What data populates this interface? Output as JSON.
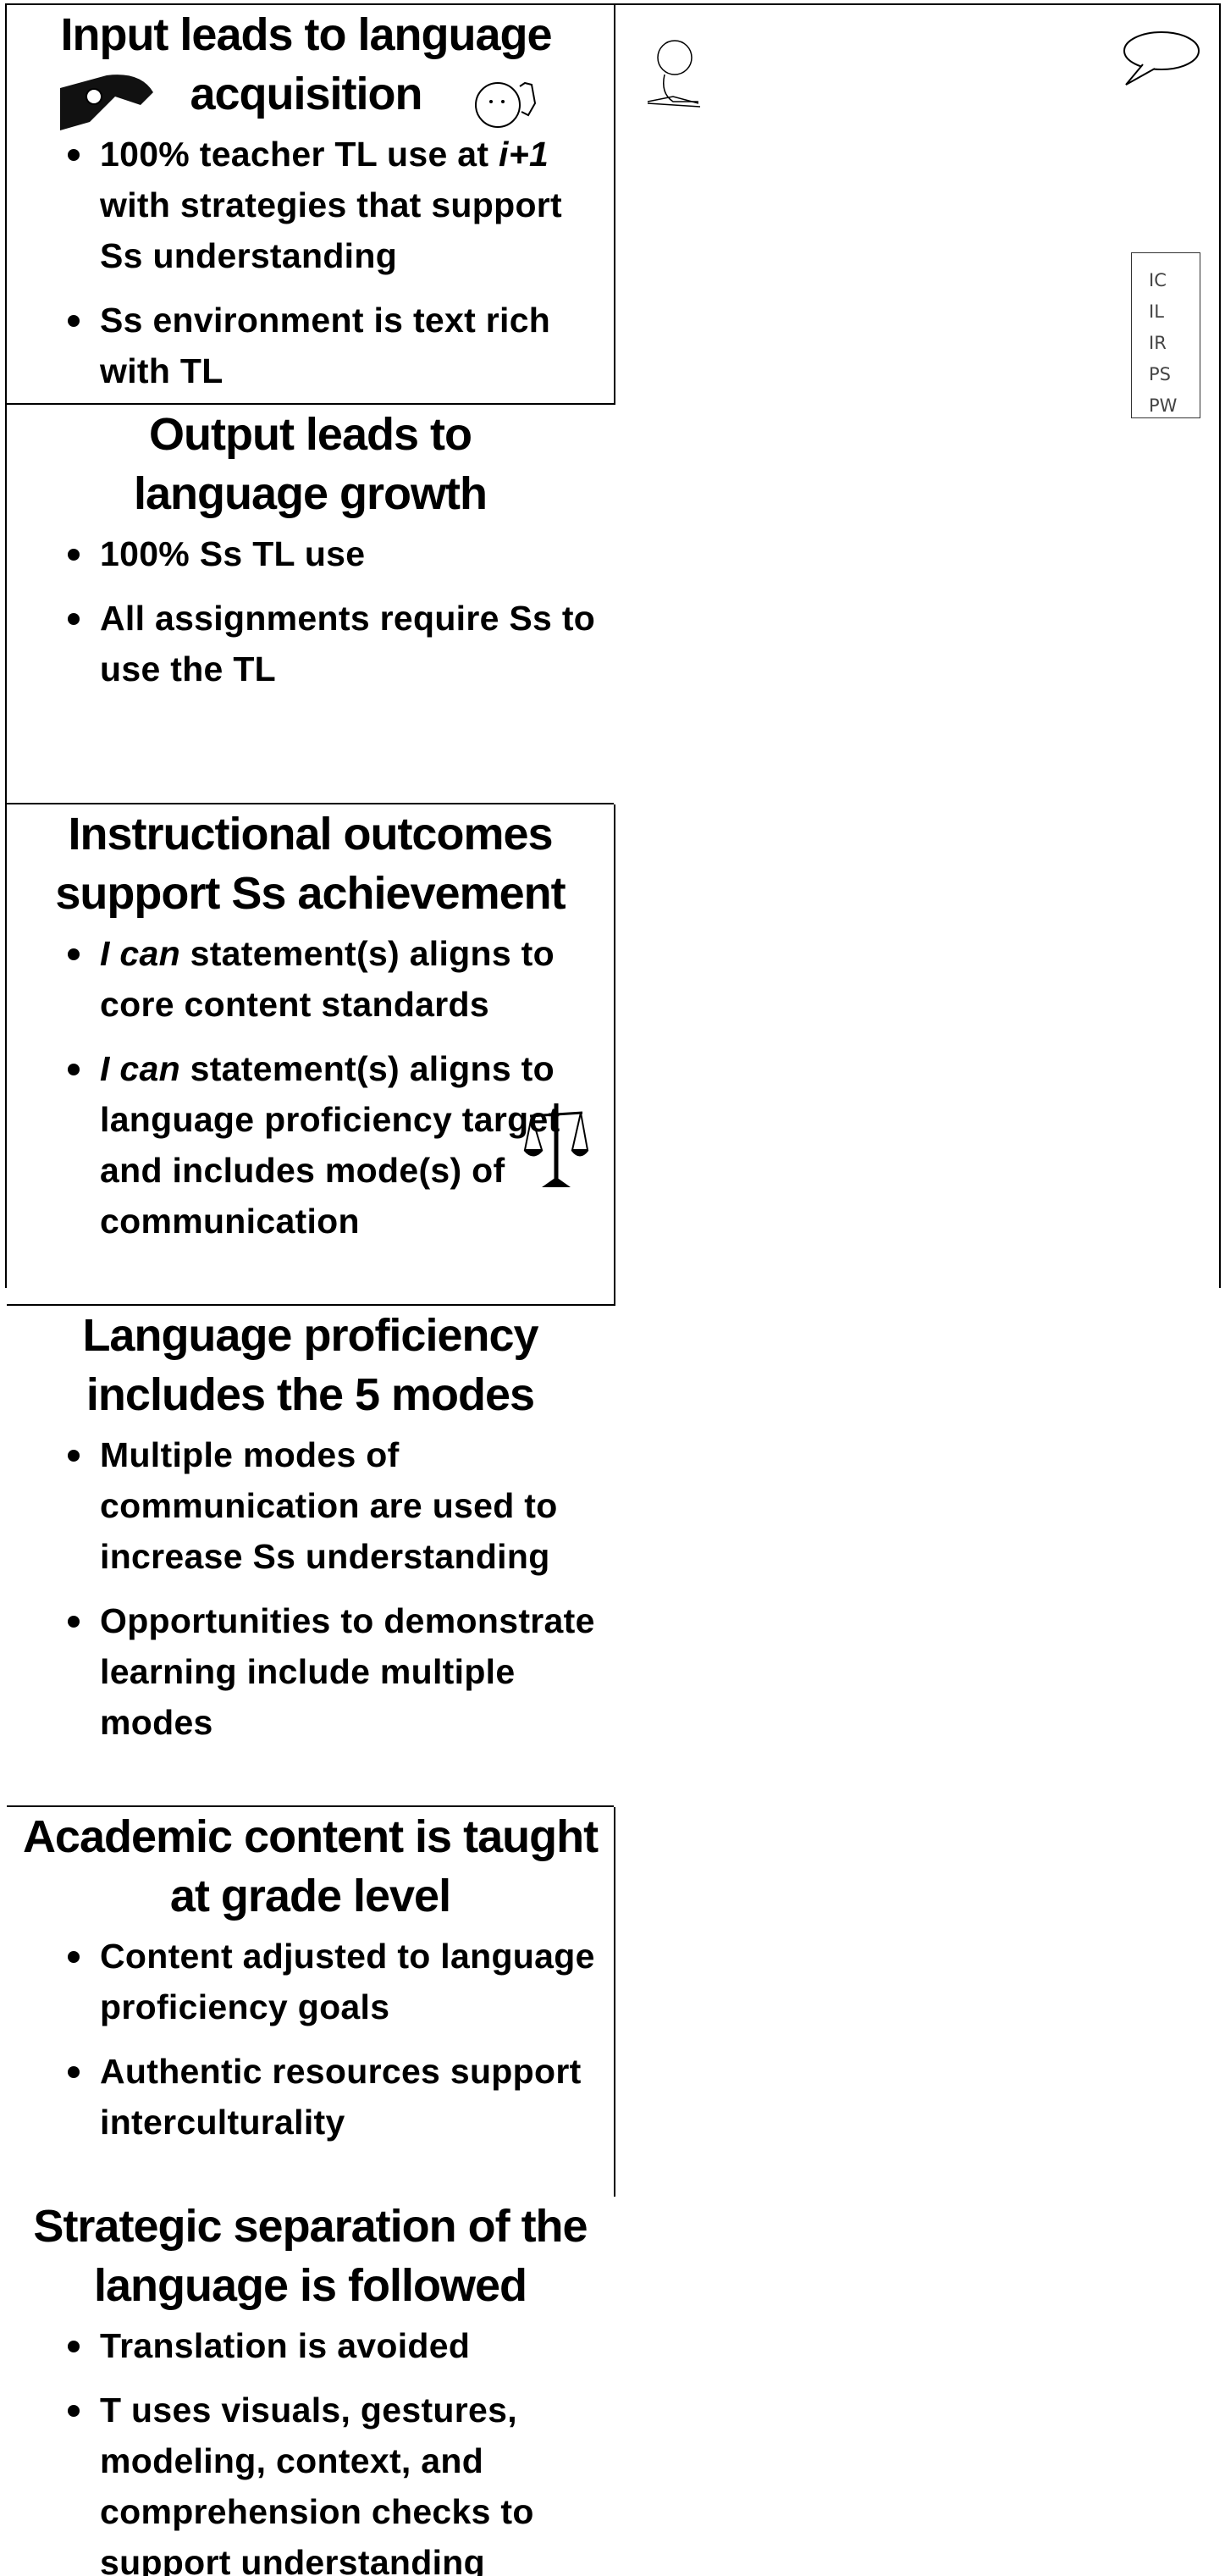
{
  "cells": [
    {
      "title": "Input leads to language acquisition",
      "bullets": [
        [
          "100% teacher TL use at ",
          {
            "italic": "i+1"
          },
          " with strategies that support Ss understanding"
        ],
        [
          "Ss environment is text rich with TL"
        ]
      ]
    },
    {
      "title": "Output leads to language growth",
      "bullets": [
        [
          "100% Ss TL use"
        ],
        [
          "All assignments require Ss to use the TL"
        ]
      ]
    },
    {
      "title": "Instructional outcomes support Ss achievement",
      "bullets": [
        [
          {
            "italic": "I can"
          },
          " statement(s) aligns to core content standards"
        ],
        [
          {
            "italic": "I can"
          },
          " statement(s) aligns to language proficiency target and includes mode(s) of communication"
        ]
      ]
    },
    {
      "title": "Language proficiency includes the 5 modes",
      "bullets": [
        [
          "Multiple modes of communication are used to increase Ss understanding"
        ],
        [
          "Opportunities to demonstrate learning include multiple modes"
        ]
      ],
      "note": [
        "IC",
        "IL",
        "IR",
        "PS",
        "PW"
      ]
    },
    {
      "title": "Academic content is taught at grade level",
      "bullets": [
        [
          "Content adjusted to language proficiency goals"
        ],
        [
          "Authentic resources support interculturality"
        ]
      ]
    },
    {
      "title": "Strategic separation of the language is followed",
      "bullets": [
        [
          "Translation is avoided"
        ],
        [
          "T uses visuals, gestures, modeling, context, and comprehension checks to support understanding"
        ]
      ]
    }
  ]
}
